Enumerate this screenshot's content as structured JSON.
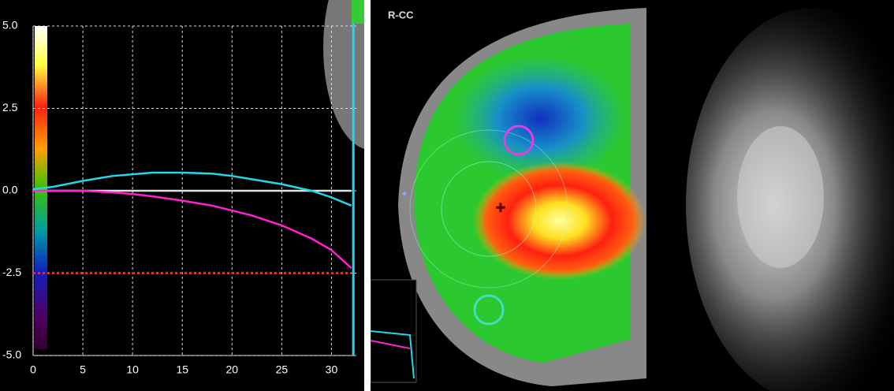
{
  "chart_data": {
    "type": "line",
    "x": [
      0,
      2,
      5,
      8,
      10,
      12,
      15,
      18,
      20,
      22,
      25,
      28,
      30,
      32
    ],
    "xlim": [
      0,
      32.5
    ],
    "xticks": [
      0,
      5,
      10,
      15,
      20,
      25,
      30
    ],
    "ylim": [
      -5,
      5
    ],
    "yticks": [
      {
        "value": -5,
        "label": "-5.0"
      },
      {
        "value": -2.5,
        "label": "-2.5"
      },
      {
        "value": 0,
        "label": "0.0"
      },
      {
        "value": 2.5,
        "label": "2.5"
      },
      {
        "value": 5,
        "label": "5.0"
      }
    ],
    "grid": true,
    "series": [
      {
        "color": "#e0e0e0",
        "style": "solid",
        "values": [
          0,
          0,
          0,
          0,
          0,
          0,
          0,
          0,
          0,
          0,
          0,
          0,
          0,
          0
        ]
      },
      {
        "color": "#ff2020",
        "style": "dotted",
        "values": [
          -2.5,
          -2.5,
          -2.5,
          -2.5,
          -2.5,
          -2.5,
          -2.5,
          -2.5,
          -2.5,
          -2.5,
          -2.5,
          -2.5,
          -2.5,
          -2.5
        ]
      },
      {
        "color": "#ff20d0",
        "style": "solid",
        "values": [
          0.0,
          0.0,
          0.0,
          -0.05,
          -0.1,
          -0.17,
          -0.3,
          -0.45,
          -0.6,
          -0.75,
          -1.05,
          -1.45,
          -1.8,
          -2.35
        ]
      },
      {
        "color": "#22d8e8",
        "style": "solid",
        "values": [
          0.05,
          0.12,
          0.3,
          0.45,
          0.5,
          0.55,
          0.55,
          0.52,
          0.45,
          0.35,
          0.2,
          0.0,
          -0.2,
          -0.45
        ]
      }
    ],
    "vline": {
      "x": 32.2,
      "color": "#22d8e8"
    }
  },
  "image_label": "R-CC"
}
